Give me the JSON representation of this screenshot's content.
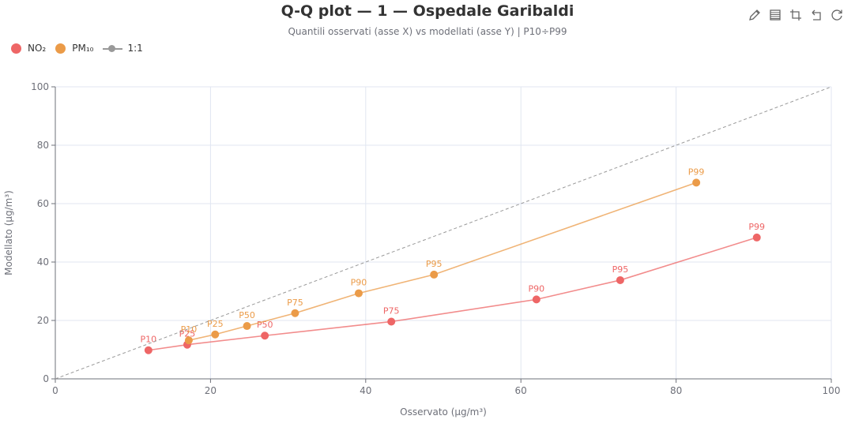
{
  "header": {
    "title": "Q-Q plot — 1 — Ospedale Garibaldi",
    "subtitle": "Quantili osservati (asse X) vs modellati (asse Y)  |  P10÷P99"
  },
  "legend": [
    {
      "label": "NO₂",
      "color": "#ee6666",
      "kind": "dot"
    },
    {
      "label": "PM₁₀",
      "color": "#eb9b48",
      "kind": "dot"
    },
    {
      "label": "1:1",
      "color": "#999999",
      "kind": "line"
    }
  ],
  "toolbox": [
    "pencil-icon",
    "data-view-icon",
    "crop-icon",
    "undo-icon",
    "refresh-icon"
  ],
  "chart_data": {
    "type": "scatter",
    "title": "Q-Q plot — 1 — Ospedale Garibaldi",
    "subtitle": "Quantili osservati (asse X) vs modellati (asse Y)  |  P10÷P99",
    "xlabel": "Osservato (µg/m³)",
    "ylabel": "Modellato (µg/m³)",
    "xlim": [
      0,
      100
    ],
    "ylim": [
      0,
      100
    ],
    "xticks": [
      0,
      20,
      40,
      60,
      80,
      100
    ],
    "yticks": [
      0,
      20,
      40,
      60,
      80,
      100
    ],
    "grid": true,
    "legend_position": "top-left",
    "series": [
      {
        "name": "NO₂",
        "color": "#ee6666",
        "points": [
          {
            "label": "P10",
            "x": 12.0,
            "y": 9.8
          },
          {
            "label": "P25",
            "x": 17.0,
            "y": 11.7
          },
          {
            "label": "P50",
            "x": 27.0,
            "y": 14.8
          },
          {
            "label": "P75",
            "x": 43.3,
            "y": 19.6
          },
          {
            "label": "P90",
            "x": 62.0,
            "y": 27.2
          },
          {
            "label": "P95",
            "x": 72.8,
            "y": 33.8
          },
          {
            "label": "P99",
            "x": 90.4,
            "y": 48.4
          }
        ]
      },
      {
        "name": "PM₁₀",
        "color": "#eb9b48",
        "points": [
          {
            "label": "P10",
            "x": 17.2,
            "y": 13.2
          },
          {
            "label": "P25",
            "x": 20.6,
            "y": 15.2
          },
          {
            "label": "P50",
            "x": 24.7,
            "y": 18.1
          },
          {
            "label": "P75",
            "x": 30.9,
            "y": 22.5
          },
          {
            "label": "P90",
            "x": 39.1,
            "y": 29.3
          },
          {
            "label": "P95",
            "x": 48.8,
            "y": 35.7
          },
          {
            "label": "P99",
            "x": 82.6,
            "y": 67.2
          }
        ]
      },
      {
        "name": "1:1",
        "color": "#999999",
        "dashed": true,
        "points": [
          {
            "x": 0,
            "y": 0
          },
          {
            "x": 100,
            "y": 100
          }
        ]
      }
    ]
  }
}
